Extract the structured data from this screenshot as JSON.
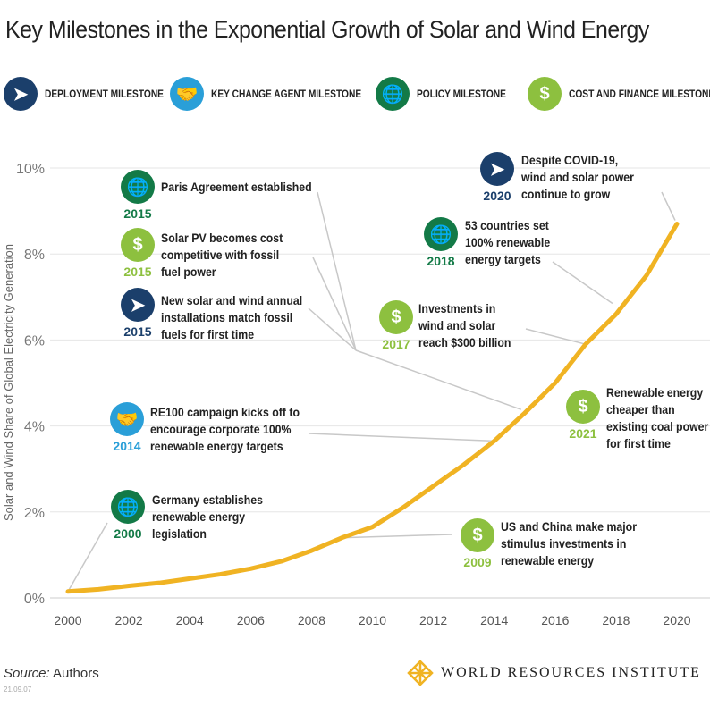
{
  "title": "Key Milestones in the Exponential Growth of Solar and Wind Energy",
  "legend": [
    {
      "label": "DEPLOYMENT MILESTONE",
      "icon": "paper-plane-icon",
      "color": "#1b3f6b"
    },
    {
      "label": "KEY CHANGE AGENT MILESTONE",
      "icon": "handshake-icon",
      "color": "#2a9fd8"
    },
    {
      "label": "POLICY MILESTONE",
      "icon": "globe-icon",
      "color": "#137a47"
    },
    {
      "label": "COST AND FINANCE MILESTONE",
      "icon": "dollar-icon",
      "color": "#8dc03f"
    }
  ],
  "milestones": [
    {
      "year": "2015",
      "type": "policy",
      "text": "Paris Agreement established"
    },
    {
      "year": "2015",
      "type": "cost",
      "text": "Solar PV becomes cost\ncompetitive with fossil\nfuel power"
    },
    {
      "year": "2015",
      "type": "deployment",
      "text": "New solar and wind annual\ninstallations match fossil\nfuels for first time"
    },
    {
      "year": "2014",
      "type": "agent",
      "text": "RE100 campaign kicks off to\nencourage corporate 100%\nrenewable energy targets"
    },
    {
      "year": "2000",
      "type": "policy",
      "text": "Germany establishes\nrenewable energy\nlegislation"
    },
    {
      "year": "2020",
      "type": "deployment",
      "text": "Despite COVID-19,\nwind and solar power\ncontinue to grow"
    },
    {
      "year": "2018",
      "type": "policy",
      "text": "53 countries set\n100% renewable\nenergy targets"
    },
    {
      "year": "2017",
      "type": "cost",
      "text": "Investments in\nwind and solar\nreach $300 billion"
    },
    {
      "year": "2021",
      "type": "cost",
      "text": "Renewable energy\ncheaper than\nexisting coal power\nfor first time"
    },
    {
      "year": "2009",
      "type": "cost",
      "text": "US and China make major\nstimulus investments in\nrenewable energy"
    }
  ],
  "chart_data": {
    "type": "line",
    "title": "",
    "xlabel": "",
    "ylabel": "Solar and Wind Share of Global Electricity Generation",
    "xlim": [
      2000,
      2020
    ],
    "ylim": [
      0,
      10
    ],
    "x_ticks": [
      "2000",
      "2002",
      "2004",
      "2006",
      "2008",
      "2010",
      "2012",
      "2014",
      "2016",
      "2018",
      "2020"
    ],
    "y_ticks": [
      "0%",
      "2%",
      "4%",
      "6%",
      "8%",
      "10%"
    ],
    "grid": "horizontal",
    "line_color": "#f0b323",
    "x": [
      2000,
      2001,
      2002,
      2003,
      2004,
      2005,
      2006,
      2007,
      2008,
      2009,
      2010,
      2011,
      2012,
      2013,
      2014,
      2015,
      2016,
      2017,
      2018,
      2019,
      2020
    ],
    "values": [
      0.15,
      0.2,
      0.28,
      0.35,
      0.45,
      0.55,
      0.68,
      0.85,
      1.1,
      1.4,
      1.65,
      2.1,
      2.6,
      3.1,
      3.65,
      4.3,
      5.0,
      5.9,
      6.6,
      7.5,
      8.7
    ]
  },
  "footer": {
    "source_label": "Source:",
    "source": "Authors",
    "stamp": "21.09.07",
    "logo": "WORLD RESOURCES INSTITUTE"
  }
}
